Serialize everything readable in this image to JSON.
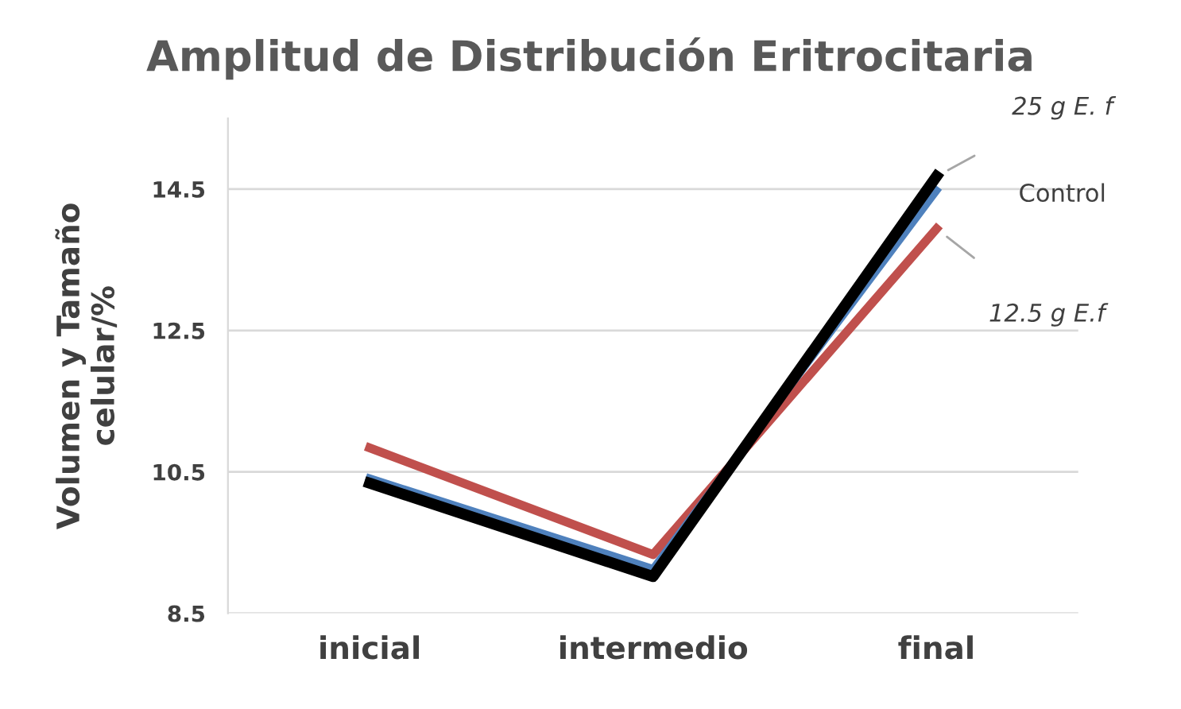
{
  "chart_data": {
    "type": "line",
    "title": "Amplitud de Distribución Eritrocitaria",
    "ylabel": "Volumen y Tamaño\ncelular/%",
    "categories": [
      "inicial",
      "intermedio",
      "final"
    ],
    "series": [
      {
        "name": "25 g E. f",
        "color": "#000000",
        "values": [
          10.34,
          9.02,
          14.68
        ]
      },
      {
        "name": "Control",
        "color": "#4f81bd",
        "values": [
          10.41,
          9.13,
          14.48
        ]
      },
      {
        "name": "12.5 g E.f",
        "color": "#c0504d",
        "values": [
          10.84,
          9.33,
          13.94
        ]
      }
    ],
    "ylim": [
      8.5,
      15.5
    ],
    "yticks": [
      8.5,
      10.5,
      12.5,
      14.5
    ],
    "grid": "y",
    "legend": false,
    "marker": "none",
    "line_style": "solid"
  }
}
